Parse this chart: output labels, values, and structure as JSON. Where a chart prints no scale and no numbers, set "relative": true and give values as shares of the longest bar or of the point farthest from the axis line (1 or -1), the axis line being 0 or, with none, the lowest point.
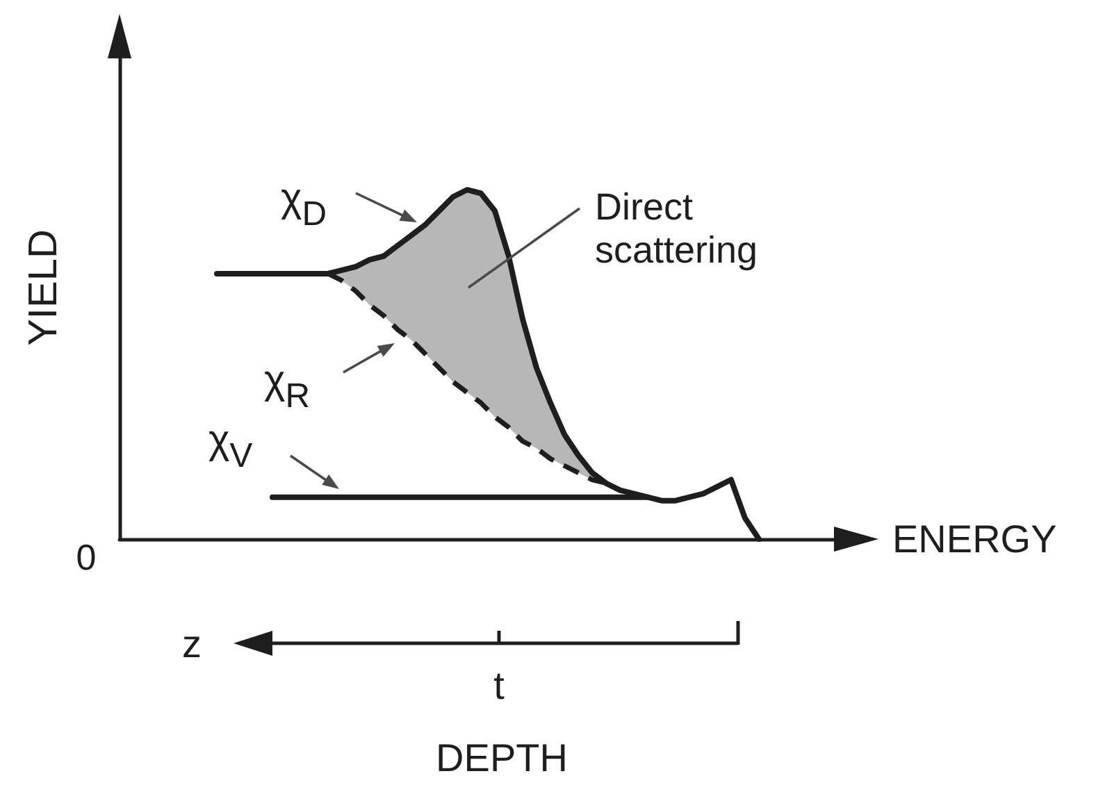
{
  "chart_data": {
    "type": "line",
    "relative": true,
    "xlabel": "ENERGY",
    "ylabel": "YIELD",
    "categories": [
      null,
      null,
      null,
      null,
      null,
      null,
      null,
      null,
      null,
      null,
      null,
      null,
      null,
      null,
      null,
      null,
      null,
      null,
      null,
      null,
      null,
      null,
      null,
      null,
      null,
      null,
      null,
      null,
      null,
      null,
      null,
      null,
      null,
      null,
      null,
      null,
      null,
      null,
      null,
      null,
      null,
      null,
      null,
      null,
      null,
      null,
      null,
      null,
      null,
      null,
      null,
      null,
      null,
      null
    ],
    "series": [
      {
        "name": "χ$_{D}$",
        "color": "#1e1e1e",
        "values": [
          null,
          null,
          null,
          null,
          null,
          null,
          null,
          0.76,
          0.76,
          0.76,
          0.76,
          0.76,
          0.76,
          0.76,
          0.76,
          0.76,
          0.77,
          0.78,
          0.8,
          0.81,
          0.84,
          0.87,
          0.9,
          0.94,
          0.98,
          1,
          0.99,
          0.94,
          0.81,
          0.63,
          0.49,
          0.39,
          0.3,
          0.24,
          0.19,
          0.16,
          0.14,
          0.13,
          0.12,
          0.11,
          0.11,
          0.12,
          0.13,
          0.15,
          0.17,
          0.06,
          0,
          null,
          null,
          null,
          null,
          null,
          null,
          null
        ],
        "lower": [
          null,
          null,
          null,
          null,
          null,
          null,
          null,
          null,
          null,
          null,
          null,
          null,
          null,
          null,
          null,
          0.76,
          0.74,
          0.71,
          0.67,
          0.64,
          0.6,
          0.57,
          0.53,
          0.49,
          0.45,
          0.42,
          0.39,
          0.35,
          0.32,
          0.28,
          0.26,
          0.23,
          0.21,
          0.19,
          0.17,
          0.16,
          null,
          null,
          null,
          null,
          null,
          null,
          null,
          null,
          null,
          null,
          null,
          null,
          null,
          null,
          null,
          null,
          null,
          null
        ],
        "upper": [
          null,
          null,
          null,
          null,
          null,
          null,
          null,
          null,
          null,
          null,
          null,
          null,
          null,
          null,
          null,
          0.76,
          0.77,
          0.78,
          0.8,
          0.81,
          0.84,
          0.87,
          0.9,
          0.94,
          0.98,
          1,
          0.99,
          0.94,
          0.81,
          0.63,
          0.49,
          0.39,
          0.3,
          0.24,
          0.19,
          0.16,
          null,
          null,
          null,
          null,
          null,
          null,
          null,
          null,
          null,
          null,
          null,
          null,
          null,
          null,
          null,
          null,
          null,
          null
        ]
      },
      {
        "name": "χ$_{R}$",
        "color": "#1e1e1e",
        "line_style": "dashed",
        "values": [
          null,
          null,
          null,
          null,
          null,
          null,
          null,
          null,
          null,
          null,
          null,
          null,
          null,
          null,
          null,
          0.76,
          0.74,
          0.71,
          0.67,
          0.64,
          0.6,
          0.57,
          0.53,
          0.49,
          0.45,
          0.42,
          0.39,
          0.35,
          0.32,
          0.28,
          0.26,
          0.23,
          0.21,
          0.19,
          0.17,
          0.16,
          null,
          null,
          null,
          null,
          null,
          null,
          null,
          null,
          null,
          null,
          null,
          null,
          null,
          null,
          null,
          null,
          null,
          null
        ]
      },
      {
        "name": "χ$_{V}$",
        "color": "#1e1e1e",
        "values": [
          null,
          null,
          null,
          null,
          null,
          null,
          null,
          null,
          null,
          null,
          null,
          0.12,
          0.12,
          0.12,
          0.12,
          0.12,
          0.12,
          0.12,
          0.12,
          0.12,
          0.12,
          0.12,
          0.12,
          0.12,
          0.12,
          0.12,
          0.12,
          0.12,
          0.12,
          0.12,
          0.12,
          0.12,
          0.12,
          0.12,
          0.12,
          0.12,
          0.12,
          0.12,
          0.12,
          null,
          null,
          null,
          null,
          null,
          null,
          null,
          null,
          null,
          null,
          null,
          null,
          null,
          null,
          null
        ]
      }
    ],
    "annotations": [
      "Direct scattering",
      "0",
      "z",
      "t",
      "DEPTH"
    ],
    "legend": false,
    "grid": false,
    "marker": "none",
    "line_style": "solid"
  }
}
